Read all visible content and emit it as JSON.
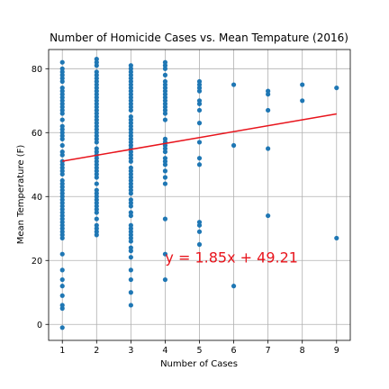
{
  "chart_data": {
    "type": "scatter",
    "title": "Number of Homicide Cases vs. Mean Tempature (2016)",
    "xlabel": "Number of Cases",
    "ylabel": "Mean Temperature (F)",
    "xlim": [
      0.6,
      9.4
    ],
    "ylim": [
      -5,
      86
    ],
    "xticks": [
      1,
      2,
      3,
      4,
      5,
      6,
      7,
      8,
      9
    ],
    "yticks": [
      0,
      20,
      40,
      60,
      80
    ],
    "grid": true,
    "colors": {
      "points": "#1f77b4",
      "regression": "#e8141c",
      "annotation": "#e8141c"
    },
    "regression": {
      "slope": 1.85,
      "intercept": 49.21,
      "x_range": [
        1,
        9
      ]
    },
    "annotation": {
      "text": "y = 1.85x + 49.21",
      "x": 4,
      "y": 21
    },
    "points": [
      {
        "x": 1,
        "y": -1
      },
      {
        "x": 1,
        "y": 5
      },
      {
        "x": 1,
        "y": 6
      },
      {
        "x": 1,
        "y": 9
      },
      {
        "x": 1,
        "y": 12
      },
      {
        "x": 1,
        "y": 14
      },
      {
        "x": 1,
        "y": 17
      },
      {
        "x": 1,
        "y": 22
      },
      {
        "x": 1,
        "y": 27
      },
      {
        "x": 1,
        "y": 28
      },
      {
        "x": 1,
        "y": 29
      },
      {
        "x": 1,
        "y": 30
      },
      {
        "x": 1,
        "y": 31
      },
      {
        "x": 1,
        "y": 32
      },
      {
        "x": 1,
        "y": 33
      },
      {
        "x": 1,
        "y": 34
      },
      {
        "x": 1,
        "y": 35
      },
      {
        "x": 1,
        "y": 36
      },
      {
        "x": 1,
        "y": 37
      },
      {
        "x": 1,
        "y": 38
      },
      {
        "x": 1,
        "y": 39
      },
      {
        "x": 1,
        "y": 40
      },
      {
        "x": 1,
        "y": 41
      },
      {
        "x": 1,
        "y": 42
      },
      {
        "x": 1,
        "y": 43
      },
      {
        "x": 1,
        "y": 44
      },
      {
        "x": 1,
        "y": 45
      },
      {
        "x": 1,
        "y": 47
      },
      {
        "x": 1,
        "y": 48
      },
      {
        "x": 1,
        "y": 49
      },
      {
        "x": 1,
        "y": 50
      },
      {
        "x": 1,
        "y": 51
      },
      {
        "x": 1,
        "y": 53
      },
      {
        "x": 1,
        "y": 54
      },
      {
        "x": 1,
        "y": 56
      },
      {
        "x": 1,
        "y": 58
      },
      {
        "x": 1,
        "y": 59
      },
      {
        "x": 1,
        "y": 60
      },
      {
        "x": 1,
        "y": 61
      },
      {
        "x": 1,
        "y": 62
      },
      {
        "x": 1,
        "y": 64
      },
      {
        "x": 1,
        "y": 66
      },
      {
        "x": 1,
        "y": 67
      },
      {
        "x": 1,
        "y": 68
      },
      {
        "x": 1,
        "y": 69
      },
      {
        "x": 1,
        "y": 70
      },
      {
        "x": 1,
        "y": 71
      },
      {
        "x": 1,
        "y": 72
      },
      {
        "x": 1,
        "y": 73
      },
      {
        "x": 1,
        "y": 74
      },
      {
        "x": 1,
        "y": 76
      },
      {
        "x": 1,
        "y": 77
      },
      {
        "x": 1,
        "y": 78
      },
      {
        "x": 1,
        "y": 79
      },
      {
        "x": 1,
        "y": 80
      },
      {
        "x": 1,
        "y": 82
      },
      {
        "x": 2,
        "y": 28
      },
      {
        "x": 2,
        "y": 29
      },
      {
        "x": 2,
        "y": 30
      },
      {
        "x": 2,
        "y": 31
      },
      {
        "x": 2,
        "y": 33
      },
      {
        "x": 2,
        "y": 35
      },
      {
        "x": 2,
        "y": 36
      },
      {
        "x": 2,
        "y": 37
      },
      {
        "x": 2,
        "y": 38
      },
      {
        "x": 2,
        "y": 39
      },
      {
        "x": 2,
        "y": 40
      },
      {
        "x": 2,
        "y": 41
      },
      {
        "x": 2,
        "y": 42
      },
      {
        "x": 2,
        "y": 44
      },
      {
        "x": 2,
        "y": 46
      },
      {
        "x": 2,
        "y": 47
      },
      {
        "x": 2,
        "y": 48
      },
      {
        "x": 2,
        "y": 49
      },
      {
        "x": 2,
        "y": 50
      },
      {
        "x": 2,
        "y": 51
      },
      {
        "x": 2,
        "y": 52
      },
      {
        "x": 2,
        "y": 53
      },
      {
        "x": 2,
        "y": 54
      },
      {
        "x": 2,
        "y": 55
      },
      {
        "x": 2,
        "y": 57
      },
      {
        "x": 2,
        "y": 58
      },
      {
        "x": 2,
        "y": 59
      },
      {
        "x": 2,
        "y": 60
      },
      {
        "x": 2,
        "y": 61
      },
      {
        "x": 2,
        "y": 62
      },
      {
        "x": 2,
        "y": 63
      },
      {
        "x": 2,
        "y": 64
      },
      {
        "x": 2,
        "y": 65
      },
      {
        "x": 2,
        "y": 66
      },
      {
        "x": 2,
        "y": 67
      },
      {
        "x": 2,
        "y": 68
      },
      {
        "x": 2,
        "y": 69
      },
      {
        "x": 2,
        "y": 70
      },
      {
        "x": 2,
        "y": 71
      },
      {
        "x": 2,
        "y": 72
      },
      {
        "x": 2,
        "y": 73
      },
      {
        "x": 2,
        "y": 74
      },
      {
        "x": 2,
        "y": 75
      },
      {
        "x": 2,
        "y": 76
      },
      {
        "x": 2,
        "y": 77
      },
      {
        "x": 2,
        "y": 78
      },
      {
        "x": 2,
        "y": 79
      },
      {
        "x": 2,
        "y": 81
      },
      {
        "x": 2,
        "y": 82
      },
      {
        "x": 2,
        "y": 83
      },
      {
        "x": 3,
        "y": 6
      },
      {
        "x": 3,
        "y": 10
      },
      {
        "x": 3,
        "y": 14
      },
      {
        "x": 3,
        "y": 17
      },
      {
        "x": 3,
        "y": 21
      },
      {
        "x": 3,
        "y": 23
      },
      {
        "x": 3,
        "y": 24
      },
      {
        "x": 3,
        "y": 26
      },
      {
        "x": 3,
        "y": 27
      },
      {
        "x": 3,
        "y": 28
      },
      {
        "x": 3,
        "y": 29
      },
      {
        "x": 3,
        "y": 30
      },
      {
        "x": 3,
        "y": 31
      },
      {
        "x": 3,
        "y": 34
      },
      {
        "x": 3,
        "y": 35
      },
      {
        "x": 3,
        "y": 37
      },
      {
        "x": 3,
        "y": 38
      },
      {
        "x": 3,
        "y": 39
      },
      {
        "x": 3,
        "y": 41
      },
      {
        "x": 3,
        "y": 42
      },
      {
        "x": 3,
        "y": 43
      },
      {
        "x": 3,
        "y": 44
      },
      {
        "x": 3,
        "y": 45
      },
      {
        "x": 3,
        "y": 46
      },
      {
        "x": 3,
        "y": 47
      },
      {
        "x": 3,
        "y": 48
      },
      {
        "x": 3,
        "y": 49
      },
      {
        "x": 3,
        "y": 51
      },
      {
        "x": 3,
        "y": 52
      },
      {
        "x": 3,
        "y": 53
      },
      {
        "x": 3,
        "y": 54
      },
      {
        "x": 3,
        "y": 55
      },
      {
        "x": 3,
        "y": 56
      },
      {
        "x": 3,
        "y": 57
      },
      {
        "x": 3,
        "y": 58
      },
      {
        "x": 3,
        "y": 59
      },
      {
        "x": 3,
        "y": 60
      },
      {
        "x": 3,
        "y": 61
      },
      {
        "x": 3,
        "y": 62
      },
      {
        "x": 3,
        "y": 63
      },
      {
        "x": 3,
        "y": 64
      },
      {
        "x": 3,
        "y": 65
      },
      {
        "x": 3,
        "y": 67
      },
      {
        "x": 3,
        "y": 68
      },
      {
        "x": 3,
        "y": 69
      },
      {
        "x": 3,
        "y": 70
      },
      {
        "x": 3,
        "y": 71
      },
      {
        "x": 3,
        "y": 72
      },
      {
        "x": 3,
        "y": 73
      },
      {
        "x": 3,
        "y": 74
      },
      {
        "x": 3,
        "y": 75
      },
      {
        "x": 3,
        "y": 76
      },
      {
        "x": 3,
        "y": 77
      },
      {
        "x": 3,
        "y": 78
      },
      {
        "x": 3,
        "y": 79
      },
      {
        "x": 3,
        "y": 80
      },
      {
        "x": 3,
        "y": 81
      },
      {
        "x": 4,
        "y": 14
      },
      {
        "x": 4,
        "y": 22
      },
      {
        "x": 4,
        "y": 33
      },
      {
        "x": 4,
        "y": 44
      },
      {
        "x": 4,
        "y": 46
      },
      {
        "x": 4,
        "y": 48
      },
      {
        "x": 4,
        "y": 50
      },
      {
        "x": 4,
        "y": 51
      },
      {
        "x": 4,
        "y": 52
      },
      {
        "x": 4,
        "y": 54
      },
      {
        "x": 4,
        "y": 55
      },
      {
        "x": 4,
        "y": 56
      },
      {
        "x": 4,
        "y": 57
      },
      {
        "x": 4,
        "y": 58
      },
      {
        "x": 4,
        "y": 64
      },
      {
        "x": 4,
        "y": 66
      },
      {
        "x": 4,
        "y": 67
      },
      {
        "x": 4,
        "y": 68
      },
      {
        "x": 4,
        "y": 69
      },
      {
        "x": 4,
        "y": 70
      },
      {
        "x": 4,
        "y": 71
      },
      {
        "x": 4,
        "y": 72
      },
      {
        "x": 4,
        "y": 73
      },
      {
        "x": 4,
        "y": 74
      },
      {
        "x": 4,
        "y": 75
      },
      {
        "x": 4,
        "y": 76
      },
      {
        "x": 4,
        "y": 78
      },
      {
        "x": 4,
        "y": 80
      },
      {
        "x": 4,
        "y": 81
      },
      {
        "x": 4,
        "y": 82
      },
      {
        "x": 5,
        "y": 25
      },
      {
        "x": 5,
        "y": 29
      },
      {
        "x": 5,
        "y": 31
      },
      {
        "x": 5,
        "y": 32
      },
      {
        "x": 5,
        "y": 50
      },
      {
        "x": 5,
        "y": 52
      },
      {
        "x": 5,
        "y": 57
      },
      {
        "x": 5,
        "y": 63
      },
      {
        "x": 5,
        "y": 67
      },
      {
        "x": 5,
        "y": 69
      },
      {
        "x": 5,
        "y": 70
      },
      {
        "x": 5,
        "y": 73
      },
      {
        "x": 5,
        "y": 74
      },
      {
        "x": 5,
        "y": 75
      },
      {
        "x": 5,
        "y": 76
      },
      {
        "x": 6,
        "y": 12
      },
      {
        "x": 6,
        "y": 56
      },
      {
        "x": 6,
        "y": 75
      },
      {
        "x": 7,
        "y": 34
      },
      {
        "x": 7,
        "y": 55
      },
      {
        "x": 7,
        "y": 67
      },
      {
        "x": 7,
        "y": 72
      },
      {
        "x": 7,
        "y": 73
      },
      {
        "x": 8,
        "y": 70
      },
      {
        "x": 8,
        "y": 75
      },
      {
        "x": 9,
        "y": 27
      },
      {
        "x": 9,
        "y": 74
      }
    ]
  }
}
